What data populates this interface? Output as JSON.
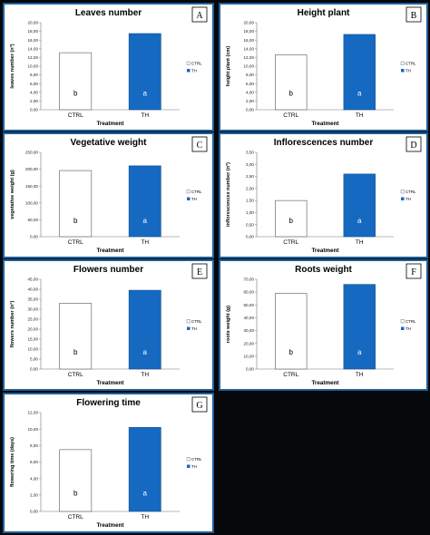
{
  "colors": {
    "ctrl": "#ffffff",
    "th": "#1569c0",
    "panel_border": "#1f5f99",
    "background": "#06080b"
  },
  "chart_data": [
    {
      "panel": "A",
      "type": "bar",
      "title": "Leaves number",
      "ylabel": "leaves number (n°)",
      "xlabel": "Treatment",
      "categories": [
        "CTRL",
        "TH"
      ],
      "values": [
        13.1,
        17.5
      ],
      "letters": [
        "b",
        "a"
      ],
      "ylim": [
        0,
        20
      ],
      "yticks": [
        "0,00",
        "2,00",
        "4,00",
        "6,00",
        "8,00",
        "10,00",
        "12,00",
        "14,00",
        "16,00",
        "18,00",
        "20,00"
      ],
      "legend": [
        "CTRL",
        "TH"
      ]
    },
    {
      "panel": "B",
      "type": "bar",
      "title": "Height plant",
      "ylabel": "height plant (cm)",
      "xlabel": "Treatment",
      "categories": [
        "CTRL",
        "TH"
      ],
      "values": [
        12.6,
        17.3
      ],
      "letters": [
        "b",
        "a"
      ],
      "ylim": [
        0,
        20
      ],
      "yticks": [
        "0,00",
        "2,00",
        "4,00",
        "6,00",
        "8,00",
        "10,00",
        "12,00",
        "14,00",
        "16,00",
        "18,00",
        "20,00"
      ],
      "legend": [
        "CTRL",
        "TH"
      ]
    },
    {
      "panel": "C",
      "type": "bar",
      "title": "Vegetative weight",
      "ylabel": "vegetative weight (g)",
      "xlabel": "Treatment",
      "categories": [
        "CTRL",
        "TH"
      ],
      "values": [
        196,
        210
      ],
      "letters": [
        "b",
        "a"
      ],
      "ylim": [
        0,
        250
      ],
      "yticks": [
        "0,00",
        "50,00",
        "100,00",
        "150,00",
        "200,00",
        "250,00"
      ],
      "legend": [
        "CTRL",
        "TH"
      ]
    },
    {
      "panel": "D",
      "type": "bar",
      "title": "Inflorescences number",
      "ylabel": "inflorescences number (n°)",
      "xlabel": "Treatment",
      "categories": [
        "CTRL",
        "TH"
      ],
      "values": [
        1.5,
        2.6
      ],
      "letters": [
        "b",
        "a"
      ],
      "ylim": [
        0,
        3.5
      ],
      "yticks": [
        "0,00",
        "0,50",
        "1,00",
        "1,50",
        "2,00",
        "2,50",
        "3,00",
        "3,50"
      ],
      "legend": [
        "CTRL",
        "TH"
      ]
    },
    {
      "panel": "E",
      "type": "bar",
      "title": "Flowers number",
      "ylabel": "flowers number (n°)",
      "xlabel": "Treatment",
      "categories": [
        "CTRL",
        "TH"
      ],
      "values": [
        33,
        39.5
      ],
      "letters": [
        "b",
        "a"
      ],
      "ylim": [
        0,
        45
      ],
      "yticks": [
        "0,00",
        "5,00",
        "10,00",
        "15,00",
        "20,00",
        "25,00",
        "30,00",
        "35,00",
        "40,00",
        "45,00"
      ],
      "legend": [
        "CTRL",
        "TH"
      ]
    },
    {
      "panel": "F",
      "type": "bar",
      "title": "Roots weight",
      "ylabel": "roots weight (g)",
      "xlabel": "Treatment",
      "categories": [
        "CTRL",
        "TH"
      ],
      "values": [
        59,
        66
      ],
      "letters": [
        "b",
        "a"
      ],
      "ylim": [
        0,
        70
      ],
      "yticks": [
        "0,00",
        "10,00",
        "20,00",
        "30,00",
        "40,00",
        "50,00",
        "60,00",
        "70,00"
      ],
      "legend": [
        "CTRL",
        "TH"
      ]
    },
    {
      "panel": "G",
      "type": "bar",
      "title": "Flowering time",
      "ylabel": "flowering time (days)",
      "xlabel": "Treatment",
      "categories": [
        "CTRL",
        "TH"
      ],
      "values": [
        7.5,
        10.2
      ],
      "letters": [
        "b",
        "a"
      ],
      "ylim": [
        0,
        12
      ],
      "yticks": [
        "0,00",
        "2,00",
        "4,00",
        "6,00",
        "8,00",
        "10,00",
        "12,00"
      ],
      "legend": [
        "CTRL",
        "TH"
      ]
    }
  ]
}
